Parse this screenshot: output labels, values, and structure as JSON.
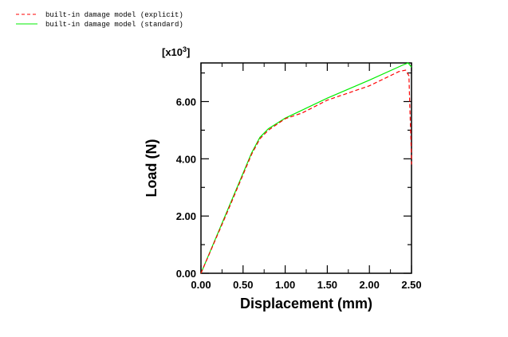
{
  "chart_data": {
    "type": "line",
    "title": "",
    "xlabel": "Displacement (mm)",
    "ylabel": "Load (N)",
    "y_multiplier": "[x10",
    "y_multiplier_exp": "3",
    "y_multiplier_close": "]",
    "xlim": [
      0,
      2.5
    ],
    "ylim": [
      0,
      7.35
    ],
    "xticks": [
      "0.00",
      "0.50",
      "1.00",
      "1.50",
      "2.00",
      "2.50"
    ],
    "xtick_values": [
      0,
      0.5,
      1,
      1.5,
      2,
      2.5
    ],
    "yticks": [
      "0.00",
      "2.00",
      "4.00",
      "6.00"
    ],
    "ytick_values": [
      0,
      2,
      4,
      6
    ],
    "legend_placement": "top-left",
    "series": [
      {
        "name": "built-in damage model (explicit)",
        "color": "#ff0000",
        "dash": true,
        "x": [
          0,
          0.3,
          0.6,
          0.7,
          0.8,
          1.0,
          1.2,
          1.5,
          2.0,
          2.35,
          2.43,
          2.47,
          2.48,
          2.49,
          2.5,
          2.5
        ],
        "y": [
          0,
          2.05,
          4.15,
          4.7,
          5.0,
          5.4,
          5.6,
          6.05,
          6.55,
          7.05,
          7.1,
          6.9,
          5.8,
          5.0,
          4.0,
          3.8
        ]
      },
      {
        "name": "built-in damage model (standard)",
        "color": "#00ee00",
        "dash": false,
        "x": [
          0,
          0.3,
          0.6,
          0.7,
          0.8,
          1.0,
          1.2,
          1.5,
          2.0,
          2.4,
          2.46,
          2.5
        ],
        "y": [
          0,
          2.1,
          4.2,
          4.75,
          5.05,
          5.42,
          5.7,
          6.12,
          6.75,
          7.28,
          7.35,
          7.2
        ]
      }
    ]
  }
}
